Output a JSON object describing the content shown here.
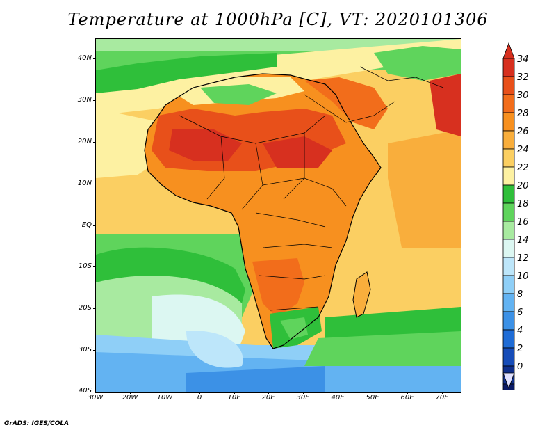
{
  "title": "Temperature at 1000hPa [C], VT: 2020101306",
  "credit": "GrADS: IGES/COLA",
  "map": {
    "variable": "Temperature at 1000hPa",
    "units": "C",
    "valid_time": "2020101306",
    "region": "Africa",
    "lat_labels": [
      "40N",
      "30N",
      "20N",
      "10N",
      "EQ",
      "10S",
      "20S",
      "30S",
      "40S"
    ],
    "lon_labels": [
      "30W",
      "20W",
      "10W",
      "0",
      "10E",
      "20E",
      "30E",
      "40E",
      "50E",
      "60E",
      "70E"
    ]
  },
  "colorbar": {
    "labels": [
      "34",
      "32",
      "30",
      "28",
      "26",
      "24",
      "22",
      "20",
      "18",
      "16",
      "14",
      "12",
      "10",
      "8",
      "6",
      "4",
      "2",
      "0"
    ],
    "colors": [
      "#d7301f",
      "#e8501a",
      "#f26d1b",
      "#f7901f",
      "#f9ae3c",
      "#fbcf62",
      "#fdf1a2",
      "#2fbf3a",
      "#5fd45c",
      "#a8eaa0",
      "#dcf7f2",
      "#bde6fa",
      "#8fcff7",
      "#63b3f2",
      "#3c91e6",
      "#1f6cd6",
      "#164cb8",
      "#0f2f8c",
      "#0a1a66"
    ],
    "over_color": "#d7301f",
    "under_color": "#dfe0ff"
  }
}
